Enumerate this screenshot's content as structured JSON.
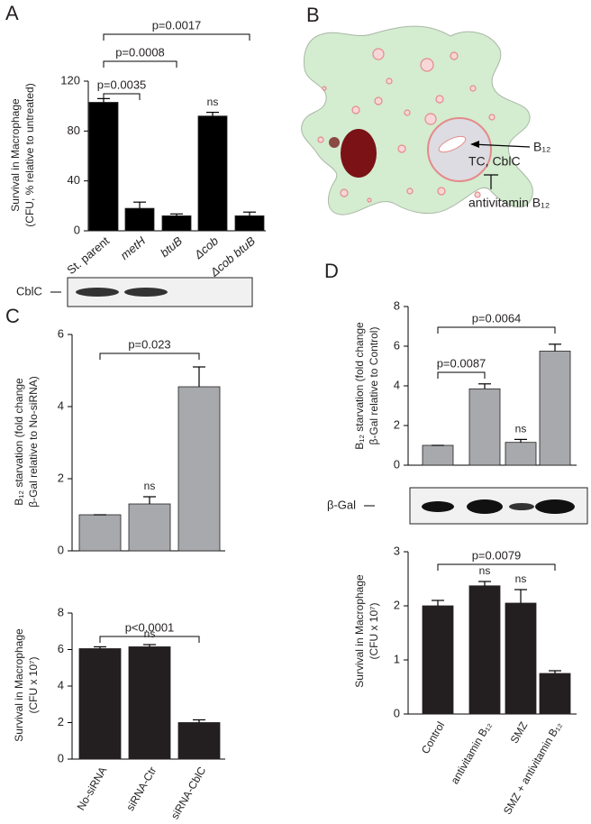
{
  "panel_labels": [
    "A",
    "B",
    "C",
    "D"
  ],
  "diagram": {
    "b12": "B₁₂",
    "tc": "TC, CblC",
    "antivitamin": "antivitamin B₁₂"
  },
  "blots": {
    "cblc": "CblC",
    "bgal": "β-Gal"
  },
  "chart_data": [
    {
      "type": "bar",
      "ylabel": [
        "Survival in Macrophage",
        "(CFU, % relative to untreated)"
      ],
      "categories": [
        "St. parent",
        "metH",
        "btuB",
        "Δcob",
        "Δcob btuB"
      ],
      "values": [
        103,
        18,
        12,
        92,
        12
      ],
      "errors": [
        3,
        5,
        1.5,
        3,
        3
      ],
      "color": "#000000",
      "ylim": [
        0,
        120
      ],
      "yticks": [
        0,
        40,
        80,
        120
      ],
      "annotations": [
        {
          "text": "p=0.0035",
          "from": 0,
          "to": 1
        },
        {
          "text": "p=0.0008",
          "from": 0,
          "to": 2
        },
        {
          "text": "p=0.0017",
          "from": 0,
          "to": 4
        },
        {
          "text": "ns",
          "at": 3
        }
      ]
    },
    {
      "type": "bar",
      "ylabel": [
        "B₁₂ starvation (fold change",
        "β-Gal relative to No-siRNA)"
      ],
      "categories": [
        null,
        null,
        null
      ],
      "values": [
        1.0,
        1.3,
        4.55
      ],
      "errors": [
        0,
        0.2,
        0.55
      ],
      "color": "#a7a9ac",
      "ylim": [
        0,
        6
      ],
      "yticks": [
        0,
        2,
        4,
        6
      ],
      "annotations": [
        {
          "text": "p=0.023",
          "from": 0,
          "to": 2
        },
        {
          "text": "ns",
          "at": 1
        }
      ]
    },
    {
      "type": "bar",
      "ylabel": [
        "Survival in Macrophage",
        "(CFU x 10⁷)"
      ],
      "categories": [
        "No-siRNA",
        "siRNA-Ctr",
        "siRNA-CblC"
      ],
      "values": [
        6.05,
        6.15,
        2.0
      ],
      "errors": [
        0.1,
        0.12,
        0.15
      ],
      "color": "#231f20",
      "ylim": [
        0,
        8
      ],
      "yticks": [
        0,
        2,
        4,
        6,
        8
      ],
      "annotations": [
        {
          "text": "p<0.0001",
          "from": 0,
          "to": 2
        },
        {
          "text": "ns",
          "at": 1
        }
      ]
    },
    {
      "type": "bar",
      "ylabel": [
        "B₁₂ starvation (fold change",
        "β-Gal relative to Control)"
      ],
      "categories": [
        null,
        null,
        null,
        null
      ],
      "values": [
        1.0,
        3.85,
        1.15,
        5.75
      ],
      "errors": [
        0,
        0.25,
        0.15,
        0.35
      ],
      "color": "#a7a9ac",
      "ylim": [
        0,
        8
      ],
      "yticks": [
        0,
        2,
        4,
        6,
        8
      ],
      "annotations": [
        {
          "text": "p=0.0087",
          "from": 0,
          "to": 1
        },
        {
          "text": "p=0.0064",
          "from": 0,
          "to": 3
        },
        {
          "text": "ns",
          "at": 2
        }
      ]
    },
    {
      "type": "bar",
      "ylabel": [
        "Survival in Macrophage",
        "(CFU x 10⁷)"
      ],
      "categories": [
        "Control",
        "antivitamin B₁₂",
        "SMZ",
        "SMZ + antivitamin B₁₂"
      ],
      "values": [
        2.0,
        2.37,
        2.05,
        0.75
      ],
      "errors": [
        0.1,
        0.08,
        0.25,
        0.05
      ],
      "color": "#231f20",
      "ylim": [
        0,
        3
      ],
      "yticks": [
        0,
        1,
        2,
        3
      ],
      "annotations": [
        {
          "text": "p=0.0079",
          "from": 0,
          "to": 3
        },
        {
          "text": "ns",
          "at": 1
        },
        {
          "text": "ns",
          "at": 2
        }
      ]
    }
  ]
}
